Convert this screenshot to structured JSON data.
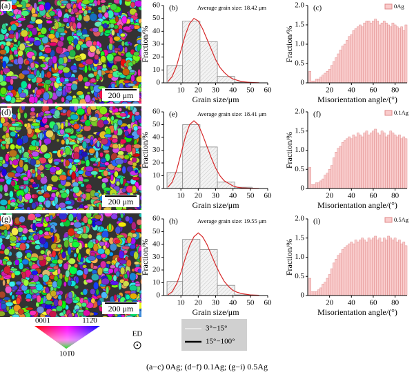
{
  "ebsd": [
    {
      "label": "(a)",
      "scale": "200 μm"
    },
    {
      "label": "(d)",
      "scale": "200 μm"
    },
    {
      "label": "(g)",
      "scale": "200 μm"
    }
  ],
  "chart_data": [
    {
      "type": "histogram",
      "panel_label": "(b)",
      "annotation": "Average grain size: 18.42 μm",
      "xlabel": "Grain size/μm",
      "ylabel": "Fraction/%",
      "bins": [
        2,
        11,
        21,
        31,
        41,
        51
      ],
      "values": [
        13.5,
        48,
        32,
        5,
        0.5
      ],
      "color": "#f0f0f0",
      "fit": {
        "x": [
          2.5,
          5,
          7.5,
          10,
          12.5,
          15,
          17.5,
          20,
          22.5,
          25,
          27.5,
          30,
          32.5,
          35,
          37.5,
          40,
          42.5,
          45,
          50,
          55
        ],
        "values": [
          1,
          5,
          13,
          25,
          37,
          46,
          50,
          48,
          42,
          34,
          26,
          18,
          12,
          8,
          5,
          3,
          2,
          1,
          0.3,
          0.1
        ],
        "color": "#d62728"
      },
      "xlim": [
        0,
        60
      ],
      "ylim": [
        0,
        60
      ],
      "xticks": [
        10,
        20,
        30,
        40,
        50,
        60
      ],
      "yticks": [
        0,
        10,
        20,
        30,
        40,
        50,
        60
      ]
    },
    {
      "type": "histogram",
      "panel_label": "(c)",
      "name": "0Ag",
      "legend_position": "upper right",
      "xlabel": "Misorientation angle/(°)",
      "ylabel": "Fraction/%",
      "color": "#f9cccc",
      "edgecolor": "#e08a8a",
      "bins": [
        1,
        3,
        5,
        7,
        9,
        11,
        13,
        15,
        17,
        19,
        21,
        23,
        25,
        27,
        29,
        31,
        33,
        35,
        37,
        39,
        41,
        43,
        45,
        47,
        49,
        51,
        53,
        55,
        57,
        59,
        61,
        63,
        65,
        67,
        69,
        71,
        73,
        75,
        77,
        79,
        81,
        83,
        85,
        87,
        89,
        91
      ],
      "values": [
        0.3,
        0.05,
        0.05,
        0.1,
        0.1,
        0.15,
        0.2,
        0.25,
        0.3,
        0.35,
        0.45,
        0.55,
        0.65,
        0.75,
        0.85,
        0.95,
        1.0,
        1.1,
        1.2,
        1.25,
        1.35,
        1.4,
        1.45,
        1.5,
        1.45,
        1.55,
        1.6,
        1.6,
        1.55,
        1.6,
        1.65,
        1.6,
        1.5,
        1.55,
        1.6,
        1.55,
        1.5,
        1.45,
        1.55,
        1.5,
        1.45,
        1.4,
        1.45,
        1.35,
        1.5
      ],
      "xlim": [
        0,
        91
      ],
      "ylim": [
        0,
        2
      ],
      "xticks": [
        20,
        40,
        60,
        80
      ],
      "yticks": [
        0,
        0.5,
        {
          "value": 1,
          "label": "1.0"
        },
        1.5,
        {
          "value": 2,
          "label": "2.0"
        }
      ]
    },
    {
      "type": "histogram",
      "panel_label": "(e)",
      "annotation": "Average grain size: 18.41 μm",
      "xlabel": "Grain size/μm",
      "ylabel": "Fraction/%",
      "bins": [
        2,
        11,
        21,
        31,
        41,
        51
      ],
      "values": [
        12.5,
        50,
        32.5,
        5,
        1
      ],
      "color": "#f0f0f0",
      "fit": {
        "x": [
          2.5,
          5,
          7.5,
          10,
          12.5,
          15,
          17.5,
          20,
          22.5,
          25,
          27.5,
          30,
          32.5,
          35,
          37.5,
          40,
          42.5,
          45,
          50,
          55
        ],
        "values": [
          1,
          5,
          14,
          27,
          40,
          50,
          53,
          50,
          42,
          33,
          24,
          16,
          10,
          6,
          4,
          2,
          1,
          0.5,
          0.2,
          0.1
        ],
        "color": "#d62728"
      },
      "xlim": [
        0,
        60
      ],
      "ylim": [
        0,
        60
      ],
      "xticks": [
        10,
        20,
        30,
        40,
        50,
        60
      ],
      "yticks": [
        0,
        10,
        20,
        30,
        40,
        50,
        60
      ]
    },
    {
      "type": "histogram",
      "panel_label": "(f)",
      "name": "0.1Ag",
      "legend_position": "upper right",
      "xlabel": "Misorientation angle/(°)",
      "ylabel": "Fraction/%",
      "color": "#f9cccc",
      "edgecolor": "#e08a8a",
      "bins": [
        1,
        3,
        5,
        7,
        9,
        11,
        13,
        15,
        17,
        19,
        21,
        23,
        25,
        27,
        29,
        31,
        33,
        35,
        37,
        39,
        41,
        43,
        45,
        47,
        49,
        51,
        53,
        55,
        57,
        59,
        61,
        63,
        65,
        67,
        69,
        71,
        73,
        75,
        77,
        79,
        81,
        83,
        85,
        87,
        89,
        91
      ],
      "values": [
        0.55,
        0.1,
        0.1,
        0.15,
        0.15,
        0.2,
        0.25,
        0.35,
        0.4,
        0.5,
        0.6,
        0.8,
        0.95,
        1.05,
        1.1,
        1.2,
        1.25,
        1.3,
        1.35,
        1.3,
        1.4,
        1.35,
        1.45,
        1.4,
        1.35,
        1.45,
        1.5,
        1.4,
        1.45,
        1.5,
        1.55,
        1.45,
        1.4,
        1.5,
        1.45,
        1.35,
        1.4,
        1.5,
        1.45,
        1.4,
        1.35,
        1.4,
        1.3,
        1.35,
        1.3
      ],
      "xlim": [
        0,
        91
      ],
      "ylim": [
        0,
        2
      ],
      "xticks": [
        20,
        40,
        60,
        80
      ],
      "yticks": [
        0,
        0.5,
        {
          "value": 1,
          "label": "1.0"
        },
        1.5,
        {
          "value": 2,
          "label": "2.0"
        }
      ]
    },
    {
      "type": "histogram",
      "panel_label": "(h)",
      "annotation": "Average grain size: 19.55 μm",
      "xlabel": "Grain size/μm",
      "ylabel": "Fraction/%",
      "bins": [
        2,
        11,
        21,
        31,
        41,
        51
      ],
      "values": [
        11,
        44,
        36,
        8,
        0.5
      ],
      "color": "#f0f0f0",
      "fit": {
        "x": [
          2.5,
          5,
          7.5,
          10,
          12.5,
          15,
          17.5,
          20,
          22.5,
          25,
          27.5,
          30,
          32.5,
          35,
          37.5,
          40,
          42.5,
          45,
          50,
          55
        ],
        "values": [
          0.5,
          3,
          9,
          18,
          29,
          39,
          46,
          49,
          46,
          40,
          32,
          24,
          17,
          11,
          7,
          4,
          2.5,
          1.5,
          0.5,
          0.2
        ],
        "color": "#d62728"
      },
      "xlim": [
        0,
        60
      ],
      "ylim": [
        0,
        60
      ],
      "xticks": [
        10,
        20,
        30,
        40,
        50,
        60
      ],
      "yticks": [
        0,
        10,
        20,
        30,
        40,
        50,
        60
      ]
    },
    {
      "type": "histogram",
      "panel_label": "(i)",
      "name": "0.5Ag",
      "legend_position": "upper right",
      "xlabel": "Misorientation angle/(°)",
      "ylabel": "Fraction/%",
      "color": "#f9cccc",
      "edgecolor": "#e08a8a",
      "bins": [
        1,
        3,
        5,
        7,
        9,
        11,
        13,
        15,
        17,
        19,
        21,
        23,
        25,
        27,
        29,
        31,
        33,
        35,
        37,
        39,
        41,
        43,
        45,
        47,
        49,
        51,
        53,
        55,
        57,
        59,
        61,
        63,
        65,
        67,
        69,
        71,
        73,
        75,
        77,
        79,
        81,
        83,
        85,
        87,
        89,
        91
      ],
      "values": [
        0.45,
        0.1,
        0.1,
        0.1,
        0.15,
        0.2,
        0.3,
        0.35,
        0.45,
        0.55,
        0.7,
        0.85,
        0.95,
        1.05,
        1.1,
        1.2,
        1.25,
        1.3,
        1.35,
        1.4,
        1.35,
        1.45,
        1.4,
        1.45,
        1.5,
        1.45,
        1.4,
        1.5,
        1.45,
        1.5,
        1.55,
        1.45,
        1.5,
        1.4,
        1.5,
        1.45,
        1.55,
        1.5,
        1.45,
        1.5,
        1.4,
        1.45,
        1.35,
        1.4,
        1.3
      ],
      "xlim": [
        0,
        91
      ],
      "ylim": [
        0,
        2
      ],
      "xticks": [
        20,
        40,
        60,
        80
      ],
      "yticks": [
        0,
        0.5,
        {
          "value": 1,
          "label": "1.0"
        },
        1.5,
        {
          "value": 2,
          "label": "2.0"
        }
      ]
    }
  ],
  "orientation_key": {
    "labels": [
      "0001",
      "112̄0",
      "101̄0"
    ]
  },
  "boundary_legend": [
    "3°−15°",
    "15°−100°"
  ],
  "ed": "ED",
  "caption": "(a−c) 0Ag; (d−f) 0.1Ag; (g−i) 0.5Ag"
}
